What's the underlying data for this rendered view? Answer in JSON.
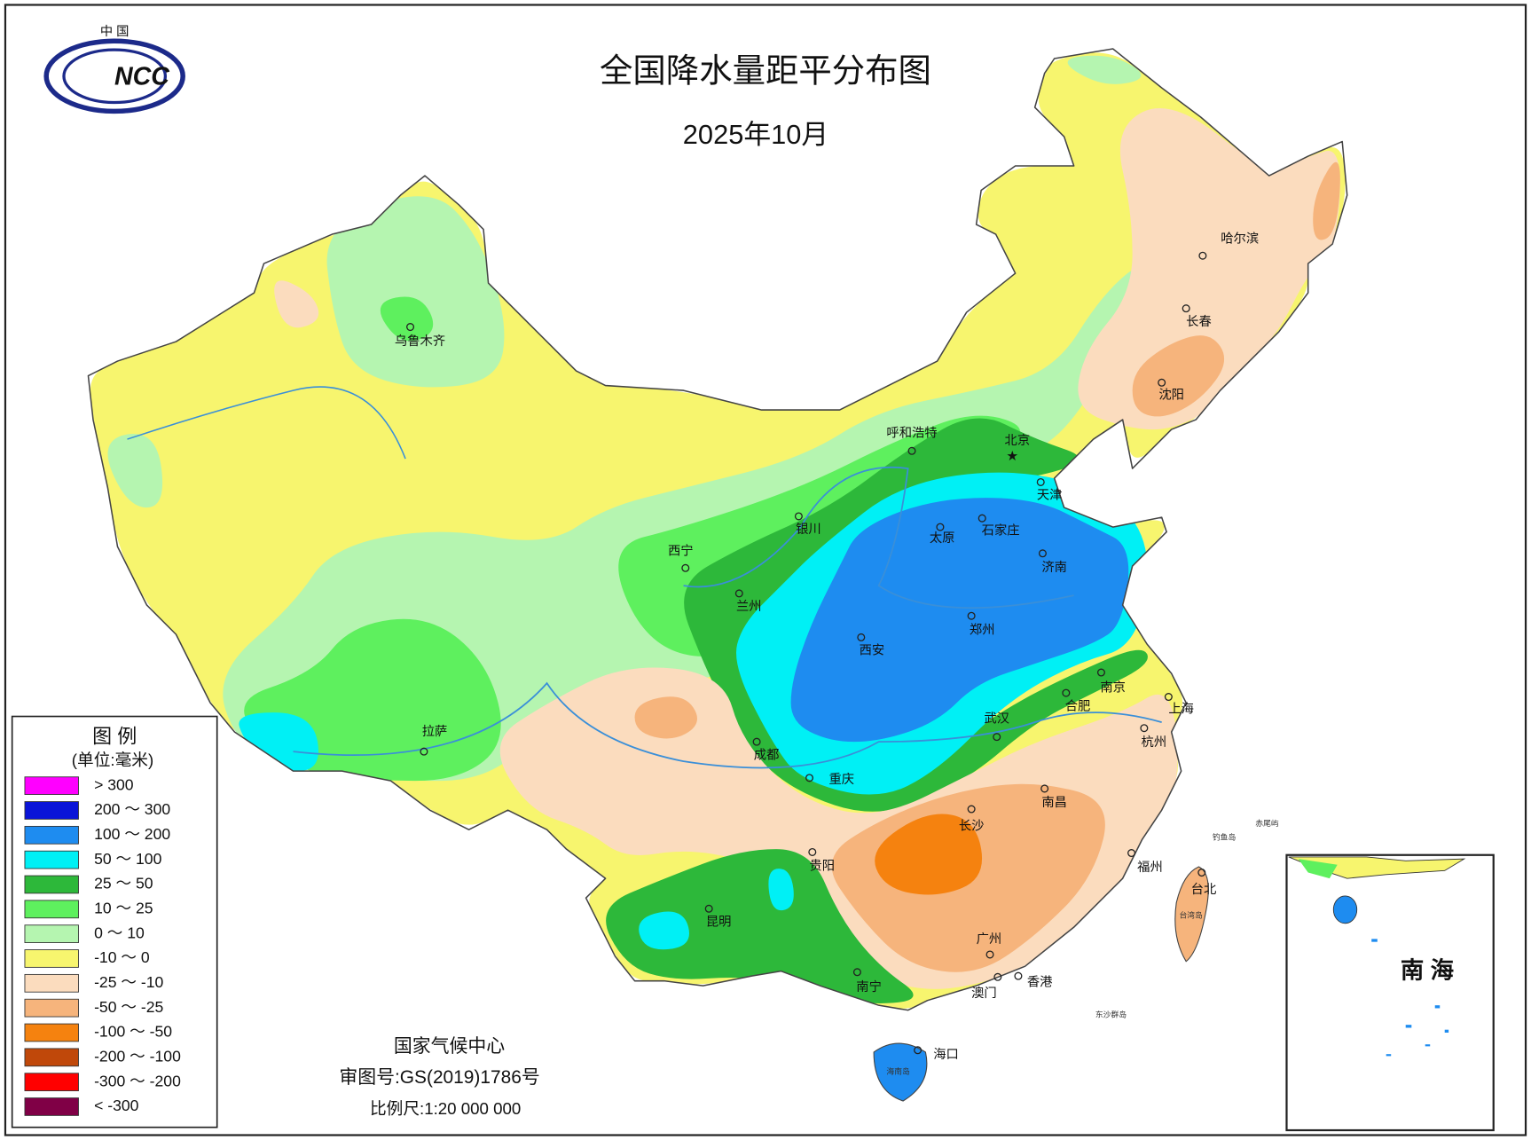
{
  "header": {
    "title": "全国降水量距平分布图",
    "subtitle": "2025年10月"
  },
  "logo": {
    "top": "中 国",
    "mark": "NCC"
  },
  "legend": {
    "title": "图 例",
    "unit": "(单位:毫米)",
    "items": [
      {
        "label": "> 300",
        "color": "#ff00ff"
      },
      {
        "label": "200 ～ 300",
        "color": "#0a14d8"
      },
      {
        "label": "100 ～ 200",
        "color": "#1e8cf0"
      },
      {
        "label": "50 ～ 100",
        "color": "#00f0f5"
      },
      {
        "label": "25 ～ 50",
        "color": "#2db83a"
      },
      {
        "label": "10 ～ 25",
        "color": "#5ef05e"
      },
      {
        "label": "0 ～ 10",
        "color": "#b5f5b0"
      },
      {
        "label": "-10 ～ 0",
        "color": "#f7f56e"
      },
      {
        "label": "-25 ～ -10",
        "color": "#fbdcbe"
      },
      {
        "label": "-50 ～ -25",
        "color": "#f6b47c"
      },
      {
        "label": "-100 ～ -50",
        "color": "#f5820f"
      },
      {
        "label": "-200 ～ -100",
        "color": "#c0480a"
      },
      {
        "label": "-300 ～ -200",
        "color": "#ff0000"
      },
      {
        "label": "< -300",
        "color": "#800046"
      }
    ]
  },
  "cities": [
    "乌鲁木齐",
    "拉萨",
    "西宁",
    "兰州",
    "银川",
    "呼和浩特",
    "北京",
    "天津",
    "石家庄",
    "太原",
    "济南",
    "郑州",
    "西安",
    "成都",
    "重庆",
    "武汉",
    "合肥",
    "南京",
    "上海",
    "杭州",
    "南昌",
    "长沙",
    "贵阳",
    "昆明",
    "福州",
    "台北",
    "广州",
    "香港",
    "澳门",
    "南宁",
    "海口",
    "哈尔滨",
    "长春",
    "沈阳"
  ],
  "places": [
    "台湾岛",
    "海南岛",
    "东沙群岛",
    "钓鱼岛",
    "赤尾屿"
  ],
  "inset": {
    "label": "南 海"
  },
  "footer": {
    "agency": "国家气候中心",
    "review": "审图号:GS(2019)1786号",
    "scale": "比例尺:1:20 000 000"
  }
}
